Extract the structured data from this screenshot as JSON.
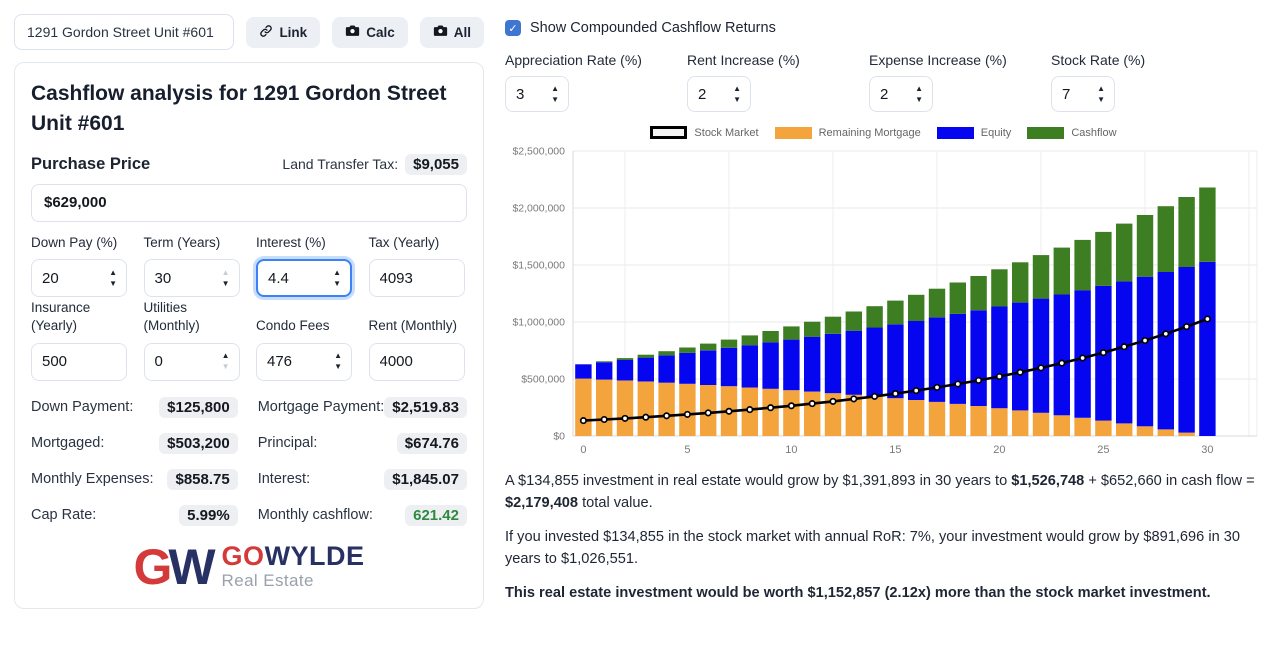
{
  "header": {
    "address_value": "1291 Gordon Street Unit #601",
    "link_button": "Link",
    "calc_button": "Calc",
    "all_button": "All"
  },
  "card": {
    "title": "Cashflow analysis for 1291 Gordon Street Unit #601",
    "purchase_price_label": "Purchase Price",
    "land_transfer_tax_label": "Land Transfer Tax:",
    "land_transfer_tax_value": "$9,055",
    "purchase_price_value": "$629,000",
    "fields": {
      "down_pay": {
        "label": "Down Pay (%)",
        "value": "20"
      },
      "term": {
        "label": "Term (Years)",
        "value": "30"
      },
      "interest": {
        "label": "Interest (%)",
        "value": "4.4"
      },
      "tax": {
        "label": "Tax (Yearly)",
        "value": "4093"
      },
      "insurance": {
        "label": "Insurance (Yearly)",
        "value": "500"
      },
      "utilities": {
        "label": "Utilities (Monthly)",
        "value": "0"
      },
      "condo_fees": {
        "label": "Condo Fees",
        "value": "476"
      },
      "rent": {
        "label": "Rent (Monthly)",
        "value": "4000"
      }
    },
    "summary": {
      "down_payment": {
        "label": "Down Payment:",
        "value": "$125,800"
      },
      "mortgage_payment": {
        "label": "Mortgage Payment:",
        "value": "$2,519.83"
      },
      "mortgaged": {
        "label": "Mortgaged:",
        "value": "$503,200"
      },
      "principal": {
        "label": "Principal:",
        "value": "$674.76"
      },
      "monthly_expenses": {
        "label": "Monthly Expenses:",
        "value": "$858.75"
      },
      "interest": {
        "label": "Interest:",
        "value": "$1,845.07"
      },
      "cap_rate": {
        "label": "Cap Rate:",
        "value": "5.99%"
      },
      "monthly_cashflow": {
        "label": "Monthly cashflow:",
        "value": "621.42"
      }
    },
    "logo": {
      "monogram_g": "G",
      "monogram_w": "W",
      "brand_go": "GO",
      "brand_wylde": "WYLDE",
      "tagline": "Real Estate",
      "red": "#d43a3a",
      "navy": "#283163"
    }
  },
  "controls": {
    "checkbox_label": "Show Compounded Cashflow Returns",
    "checkbox_checked": true,
    "rates": {
      "appreciation": {
        "label": "Appreciation Rate (%)",
        "value": "3"
      },
      "rent_increase": {
        "label": "Rent Increase (%)",
        "value": "2"
      },
      "expense_increase": {
        "label": "Expense Increase (%)",
        "value": "2"
      },
      "stock_rate": {
        "label": "Stock Rate (%)",
        "value": "7"
      }
    }
  },
  "chart_data": {
    "type": "bar",
    "stacked": true,
    "x": [
      0,
      1,
      2,
      3,
      4,
      5,
      6,
      7,
      8,
      9,
      10,
      11,
      12,
      13,
      14,
      15,
      16,
      17,
      18,
      19,
      20,
      21,
      22,
      23,
      24,
      25,
      26,
      27,
      28,
      29,
      30
    ],
    "x_ticks": [
      0,
      5,
      10,
      15,
      20,
      25,
      30
    ],
    "ylim": [
      0,
      2500000
    ],
    "y_tick_step": 500000,
    "y_tick_labels": [
      "$0",
      "$500,000",
      "$1,000,000",
      "$1,500,000",
      "$2,000,000",
      "$2,500,000"
    ],
    "grid": true,
    "legend_position": "top",
    "legend": [
      {
        "label": "Stock Market",
        "type": "line",
        "color": "#000000"
      },
      {
        "label": "Remaining Mortgage",
        "type": "bar",
        "color": "#f3a43d"
      },
      {
        "label": "Equity",
        "type": "bar",
        "color": "#0505f0"
      },
      {
        "label": "Cashflow",
        "type": "bar",
        "color": "#3e7e23"
      }
    ],
    "series": [
      {
        "name": "Remaining Mortgage",
        "type": "bar",
        "color": "#f3a43d",
        "values": [
          503200,
          494900,
          486300,
          477300,
          467900,
          458000,
          447700,
          437000,
          425700,
          414000,
          401700,
          388900,
          375500,
          361500,
          346900,
          331600,
          315600,
          299000,
          281500,
          263300,
          244300,
          224400,
          203600,
          181900,
          159200,
          135500,
          110700,
          84800,
          57800,
          29500,
          0
        ]
      },
      {
        "name": "Equity",
        "type": "bar",
        "color": "#0505f0",
        "values": [
          125800,
          152900,
          181000,
          210000,
          240100,
          271200,
          303300,
          336600,
          371100,
          406700,
          443600,
          481800,
          521300,
          562200,
          604500,
          648400,
          693700,
          740700,
          789300,
          839700,
          891800,
          945700,
          1001600,
          1059500,
          1119400,
          1181500,
          1245800,
          1312400,
          1381300,
          1452800,
          1526748
        ]
      },
      {
        "name": "Cashflow",
        "type": "bar",
        "color": "#3e7e23",
        "values": [
          0,
          7800,
          16400,
          25900,
          36100,
          47200,
          59100,
          71900,
          85600,
          100300,
          115800,
          132300,
          149700,
          168200,
          187600,
          208100,
          229600,
          252100,
          275800,
          300500,
          326400,
          353500,
          381700,
          411100,
          441700,
          473600,
          506800,
          541300,
          577000,
          614200,
          652660
        ]
      },
      {
        "name": "Stock Market",
        "type": "line",
        "color": "#000000",
        "values": [
          134855,
          144300,
          154400,
          165200,
          176800,
          189100,
          202400,
          216500,
          231700,
          247900,
          265300,
          283900,
          303700,
          325000,
          347700,
          372100,
          398100,
          426000,
          455800,
          487700,
          521800,
          558400,
          597500,
          639300,
          684000,
          731900,
          783200,
          838000,
          896600,
          959400,
          1026551
        ]
      }
    ]
  },
  "analysis": {
    "p1_a": "A $134,855 investment in real estate would grow by $1,391,893 in 30 years to ",
    "p1_b": "$1,526,748",
    "p1_c": " + $652,660 in cash flow = ",
    "p1_d": "$2,179,408",
    "p1_e": " total value.",
    "p2": "If you invested $134,855 in the stock market with annual RoR: 7%, your investment would grow by $891,696 in 30 years to $1,026,551.",
    "p3": "This real estate investment would be worth $1,152,857 (2.12x) more than the stock market investment."
  }
}
